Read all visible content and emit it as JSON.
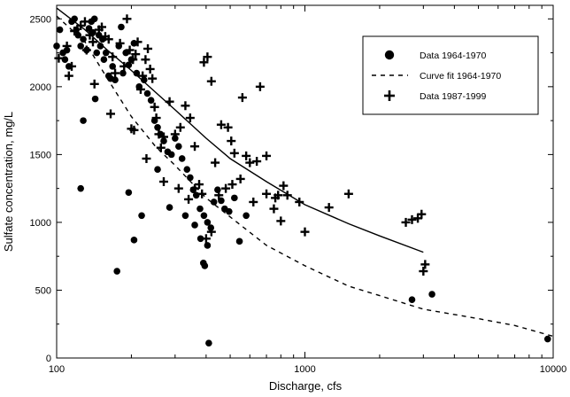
{
  "chart_data": {
    "type": "scatter",
    "xlabel": "Discharge, cfs",
    "ylabel": "Sulfate concentration, mg/L",
    "xscale": "log",
    "xlim": [
      100,
      10000
    ],
    "ylim": [
      0,
      2600
    ],
    "xticks": [
      "100",
      "1000",
      "10000"
    ],
    "yticks": [
      "0",
      "500",
      "1000",
      "1500",
      "2000",
      "2500"
    ],
    "grid": false,
    "legend_position": "top-right",
    "series": [
      {
        "name": "Data 1964-1970",
        "kind": "scatter",
        "marker": "circle",
        "color": "#000000",
        "points": [
          [
            100,
            2300
          ],
          [
            103,
            2420
          ],
          [
            106,
            2250
          ],
          [
            108,
            2200
          ],
          [
            110,
            2270
          ],
          [
            112,
            2150
          ],
          [
            115,
            2480
          ],
          [
            118,
            2500
          ],
          [
            120,
            2420
          ],
          [
            122,
            2380
          ],
          [
            125,
            2300
          ],
          [
            128,
            2350
          ],
          [
            132,
            2270
          ],
          [
            135,
            2430
          ],
          [
            138,
            2480
          ],
          [
            140,
            2400
          ],
          [
            142,
            2500
          ],
          [
            145,
            2250
          ],
          [
            148,
            2380
          ],
          [
            150,
            2300
          ],
          [
            153,
            2350
          ],
          [
            155,
            2200
          ],
          [
            158,
            2250
          ],
          [
            162,
            2080
          ],
          [
            165,
            2060
          ],
          [
            168,
            2150
          ],
          [
            172,
            2050
          ],
          [
            178,
            2300
          ],
          [
            182,
            2440
          ],
          [
            185,
            2100
          ],
          [
            190,
            2250
          ],
          [
            195,
            2160
          ],
          [
            200,
            2200
          ],
          [
            205,
            2320
          ],
          [
            210,
            2100
          ],
          [
            215,
            2000
          ],
          [
            225,
            2050
          ],
          [
            232,
            1950
          ],
          [
            240,
            1900
          ],
          [
            248,
            1750
          ],
          [
            255,
            1700
          ],
          [
            262,
            1650
          ],
          [
            270,
            1600
          ],
          [
            280,
            1520
          ],
          [
            290,
            1500
          ],
          [
            300,
            1620
          ],
          [
            310,
            1560
          ],
          [
            320,
            1470
          ],
          [
            335,
            1390
          ],
          [
            345,
            1330
          ],
          [
            355,
            1240
          ],
          [
            365,
            1200
          ],
          [
            378,
            1100
          ],
          [
            392,
            1050
          ],
          [
            405,
            1000
          ],
          [
            418,
            960
          ],
          [
            430,
            1150
          ],
          [
            445,
            1240
          ],
          [
            460,
            1160
          ],
          [
            475,
            1100
          ],
          [
            495,
            1080
          ],
          [
            520,
            1180
          ],
          [
            545,
            860
          ],
          [
            580,
            1050
          ],
          [
            125,
            1250
          ],
          [
            128,
            1750
          ],
          [
            143,
            1910
          ],
          [
            175,
            640
          ],
          [
            195,
            1220
          ],
          [
            205,
            870
          ],
          [
            220,
            1050
          ],
          [
            255,
            1390
          ],
          [
            285,
            1110
          ],
          [
            330,
            1050
          ],
          [
            360,
            980
          ],
          [
            380,
            880
          ],
          [
            390,
            700
          ],
          [
            395,
            680
          ],
          [
            405,
            830
          ],
          [
            410,
            110
          ],
          [
            2700,
            430
          ],
          [
            3250,
            470
          ],
          [
            9500,
            140
          ]
        ]
      },
      {
        "name": "Curve fit 1964-1970",
        "kind": "line",
        "style": "dashed",
        "color": "#000000",
        "points": [
          [
            100,
            2520
          ],
          [
            130,
            2330
          ],
          [
            160,
            2060
          ],
          [
            200,
            1780
          ],
          [
            250,
            1560
          ],
          [
            300,
            1420
          ],
          [
            400,
            1180
          ],
          [
            500,
            1040
          ],
          [
            700,
            830
          ],
          [
            1000,
            680
          ],
          [
            1500,
            530
          ],
          [
            2000,
            460
          ],
          [
            3000,
            360
          ],
          [
            5000,
            290
          ],
          [
            7000,
            240
          ],
          [
            10000,
            160
          ]
        ]
      },
      {
        "name": "Data 1987-1999",
        "kind": "scatter",
        "marker": "plus",
        "color": "#000000",
        "points": [
          [
            102,
            2210
          ],
          [
            110,
            2300
          ],
          [
            112,
            2080
          ],
          [
            115,
            2150
          ],
          [
            118,
            2410
          ],
          [
            125,
            2450
          ],
          [
            130,
            2480
          ],
          [
            132,
            2270
          ],
          [
            136,
            2380
          ],
          [
            140,
            2330
          ],
          [
            142,
            2020
          ],
          [
            148,
            2420
          ],
          [
            152,
            2440
          ],
          [
            157,
            2370
          ],
          [
            162,
            2350
          ],
          [
            165,
            1800
          ],
          [
            168,
            2220
          ],
          [
            172,
            2100
          ],
          [
            180,
            2320
          ],
          [
            187,
            2150
          ],
          [
            192,
            2500
          ],
          [
            197,
            2270
          ],
          [
            203,
            2200
          ],
          [
            208,
            2240
          ],
          [
            212,
            2330
          ],
          [
            218,
            1980
          ],
          [
            222,
            2080
          ],
          [
            228,
            2200
          ],
          [
            233,
            2280
          ],
          [
            238,
            2130
          ],
          [
            243,
            2060
          ],
          [
            248,
            1850
          ],
          [
            252,
            1770
          ],
          [
            258,
            1650
          ],
          [
            263,
            1550
          ],
          [
            270,
            1630
          ],
          [
            285,
            1890
          ],
          [
            300,
            1650
          ],
          [
            315,
            1700
          ],
          [
            330,
            1860
          ],
          [
            345,
            1770
          ],
          [
            360,
            1560
          ],
          [
            375,
            1280
          ],
          [
            392,
            2180
          ],
          [
            405,
            2220
          ],
          [
            420,
            2040
          ],
          [
            435,
            1440
          ],
          [
            460,
            1720
          ],
          [
            490,
            1700
          ],
          [
            505,
            1600
          ],
          [
            520,
            1510
          ],
          [
            560,
            1920
          ],
          [
            580,
            1490
          ],
          [
            600,
            1440
          ],
          [
            640,
            1450
          ],
          [
            660,
            2000
          ],
          [
            700,
            1490
          ],
          [
            750,
            1100
          ],
          [
            780,
            1200
          ],
          [
            820,
            1270
          ],
          [
            850,
            1200
          ],
          [
            950,
            1150
          ],
          [
            1000,
            930
          ],
          [
            1250,
            1110
          ],
          [
            1500,
            1210
          ],
          [
            2550,
            1000
          ],
          [
            2700,
            1020
          ],
          [
            2850,
            1030
          ],
          [
            2950,
            1060
          ],
          [
            3000,
            640
          ],
          [
            3050,
            690
          ],
          [
            200,
            1690
          ],
          [
            205,
            1680
          ],
          [
            230,
            1470
          ],
          [
            270,
            1300
          ],
          [
            310,
            1250
          ],
          [
            340,
            1170
          ],
          [
            360,
            1250
          ],
          [
            385,
            1210
          ],
          [
            400,
            880
          ],
          [
            420,
            930
          ],
          [
            450,
            1200
          ],
          [
            480,
            1250
          ],
          [
            510,
            1280
          ],
          [
            550,
            1320
          ],
          [
            620,
            1150
          ],
          [
            700,
            1210
          ],
          [
            760,
            1180
          ],
          [
            800,
            1010
          ]
        ]
      },
      {
        "name": "",
        "kind": "line",
        "style": "solid",
        "color": "#000000",
        "points": [
          [
            100,
            2580
          ],
          [
            130,
            2420
          ],
          [
            160,
            2270
          ],
          [
            200,
            2120
          ],
          [
            250,
            1960
          ],
          [
            300,
            1830
          ],
          [
            400,
            1620
          ],
          [
            500,
            1470
          ],
          [
            700,
            1300
          ],
          [
            1000,
            1130
          ],
          [
            1500,
            990
          ],
          [
            2000,
            900
          ],
          [
            3000,
            780
          ]
        ]
      }
    ]
  }
}
